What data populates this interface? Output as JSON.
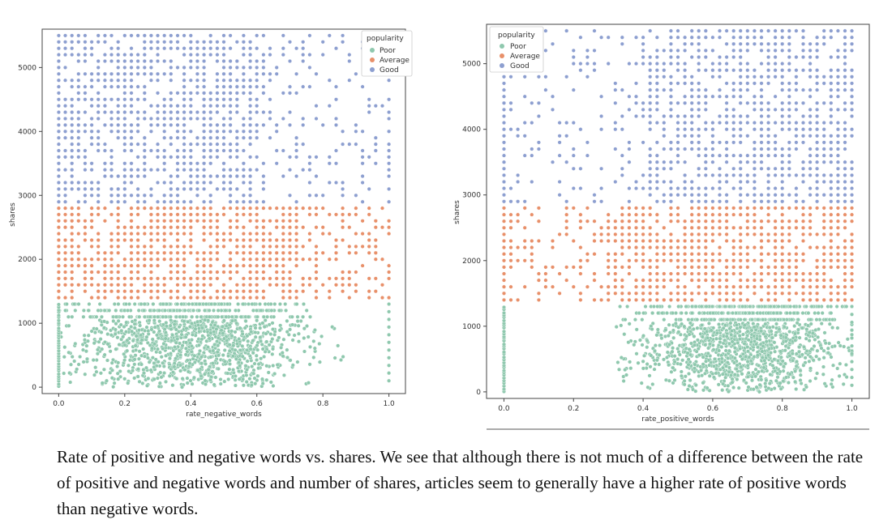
{
  "caption": "Rate of positive and negative words vs. shares. We see that although there is not much of a difference between the rate of positive and negative words and number of shares, articles seem to generally have a higher rate of positive words than negative words.",
  "colors": {
    "Poor": "#8fc8ae",
    "Average": "#e8906a",
    "Good": "#8d9fd0"
  },
  "chart_data": [
    {
      "type": "scatter",
      "title": "",
      "xlabel": "rate_negative_words",
      "ylabel": "shares",
      "xlim": [
        -0.05,
        1.05
      ],
      "ylim": [
        -100,
        5600
      ],
      "xticks": [
        0.0,
        0.2,
        0.4,
        0.6,
        0.8,
        1.0
      ],
      "xtick_labels": [
        "0.0",
        "0.2",
        "0.4",
        "0.6",
        "0.8",
        "1.0"
      ],
      "yticks": [
        0,
        1000,
        2000,
        3000,
        4000,
        5000
      ],
      "ytick_labels": [
        "0",
        "1000",
        "2000",
        "3000",
        "4000",
        "5000"
      ],
      "grid": false,
      "legend": {
        "title": "popularity",
        "placement": "top-right",
        "entries": [
          "Poor",
          "Average",
          "Good"
        ]
      },
      "series": [
        {
          "name": "Poor",
          "y_range": [
            0,
            1300
          ],
          "x_range": [
            0.0,
            1.0
          ],
          "density_peak_x": 0.3,
          "dense_until_x": 0.72
        },
        {
          "name": "Average",
          "y_range": [
            1400,
            2800
          ],
          "x_range": [
            0.0,
            1.0
          ],
          "dense_until_x": 0.72
        },
        {
          "name": "Good",
          "y_range": [
            2900,
            5500
          ],
          "x_range": [
            0.0,
            1.0
          ],
          "dense_until_x": 0.62
        }
      ]
    },
    {
      "type": "scatter",
      "title": "",
      "xlabel": "rate_positive_words",
      "ylabel": "shares",
      "xlim": [
        -0.05,
        1.05
      ],
      "ylim": [
        -100,
        5600
      ],
      "xticks": [
        0.0,
        0.2,
        0.4,
        0.6,
        0.8,
        1.0
      ],
      "xtick_labels": [
        "0.0",
        "0.2",
        "0.4",
        "0.6",
        "0.8",
        "1.0"
      ],
      "yticks": [
        0,
        1000,
        2000,
        3000,
        4000,
        5000
      ],
      "ytick_labels": [
        "0",
        "1000",
        "2000",
        "3000",
        "4000",
        "5000"
      ],
      "grid": false,
      "legend": {
        "title": "popularity",
        "placement": "top-left",
        "entries": [
          "Poor",
          "Average",
          "Good"
        ]
      },
      "series": [
        {
          "name": "Poor",
          "y_range": [
            0,
            1300
          ],
          "x_range": [
            0.0,
            1.0
          ],
          "density_peak_x": 0.75,
          "dense_from_x": 0.28
        },
        {
          "name": "Average",
          "y_range": [
            1400,
            2800
          ],
          "x_range": [
            0.0,
            1.0
          ],
          "dense_from_x": 0.3
        },
        {
          "name": "Good",
          "y_range": [
            2900,
            5500
          ],
          "x_range": [
            0.0,
            1.0
          ],
          "dense_from_x": 0.4
        }
      ]
    }
  ]
}
